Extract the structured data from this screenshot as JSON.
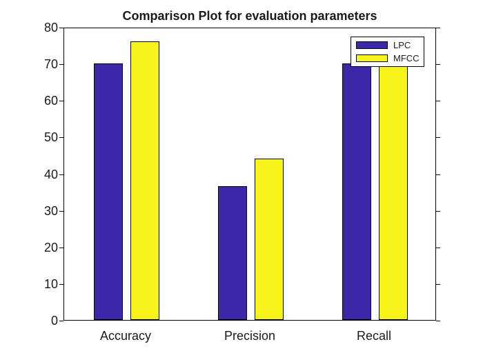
{
  "chart_data": {
    "type": "bar",
    "title": "Comparison Plot for evaluation parameters",
    "categories": [
      "Accuracy",
      "Precision",
      "Recall"
    ],
    "series": [
      {
        "name": "LPC",
        "color": "#3E26A8",
        "values": [
          70,
          36.5,
          70
        ]
      },
      {
        "name": "MFCC",
        "color": "#F7F219",
        "values": [
          76,
          44,
          75
        ]
      }
    ],
    "xlabel": "",
    "ylabel": "",
    "ylim": [
      0,
      80
    ],
    "yticks": [
      0,
      10,
      20,
      30,
      40,
      50,
      60,
      70,
      80
    ],
    "grid": false,
    "legend_position": "top-right",
    "bar_edge_color": "#000000",
    "axis_color": "#000000",
    "background_color": "#ffffff"
  }
}
